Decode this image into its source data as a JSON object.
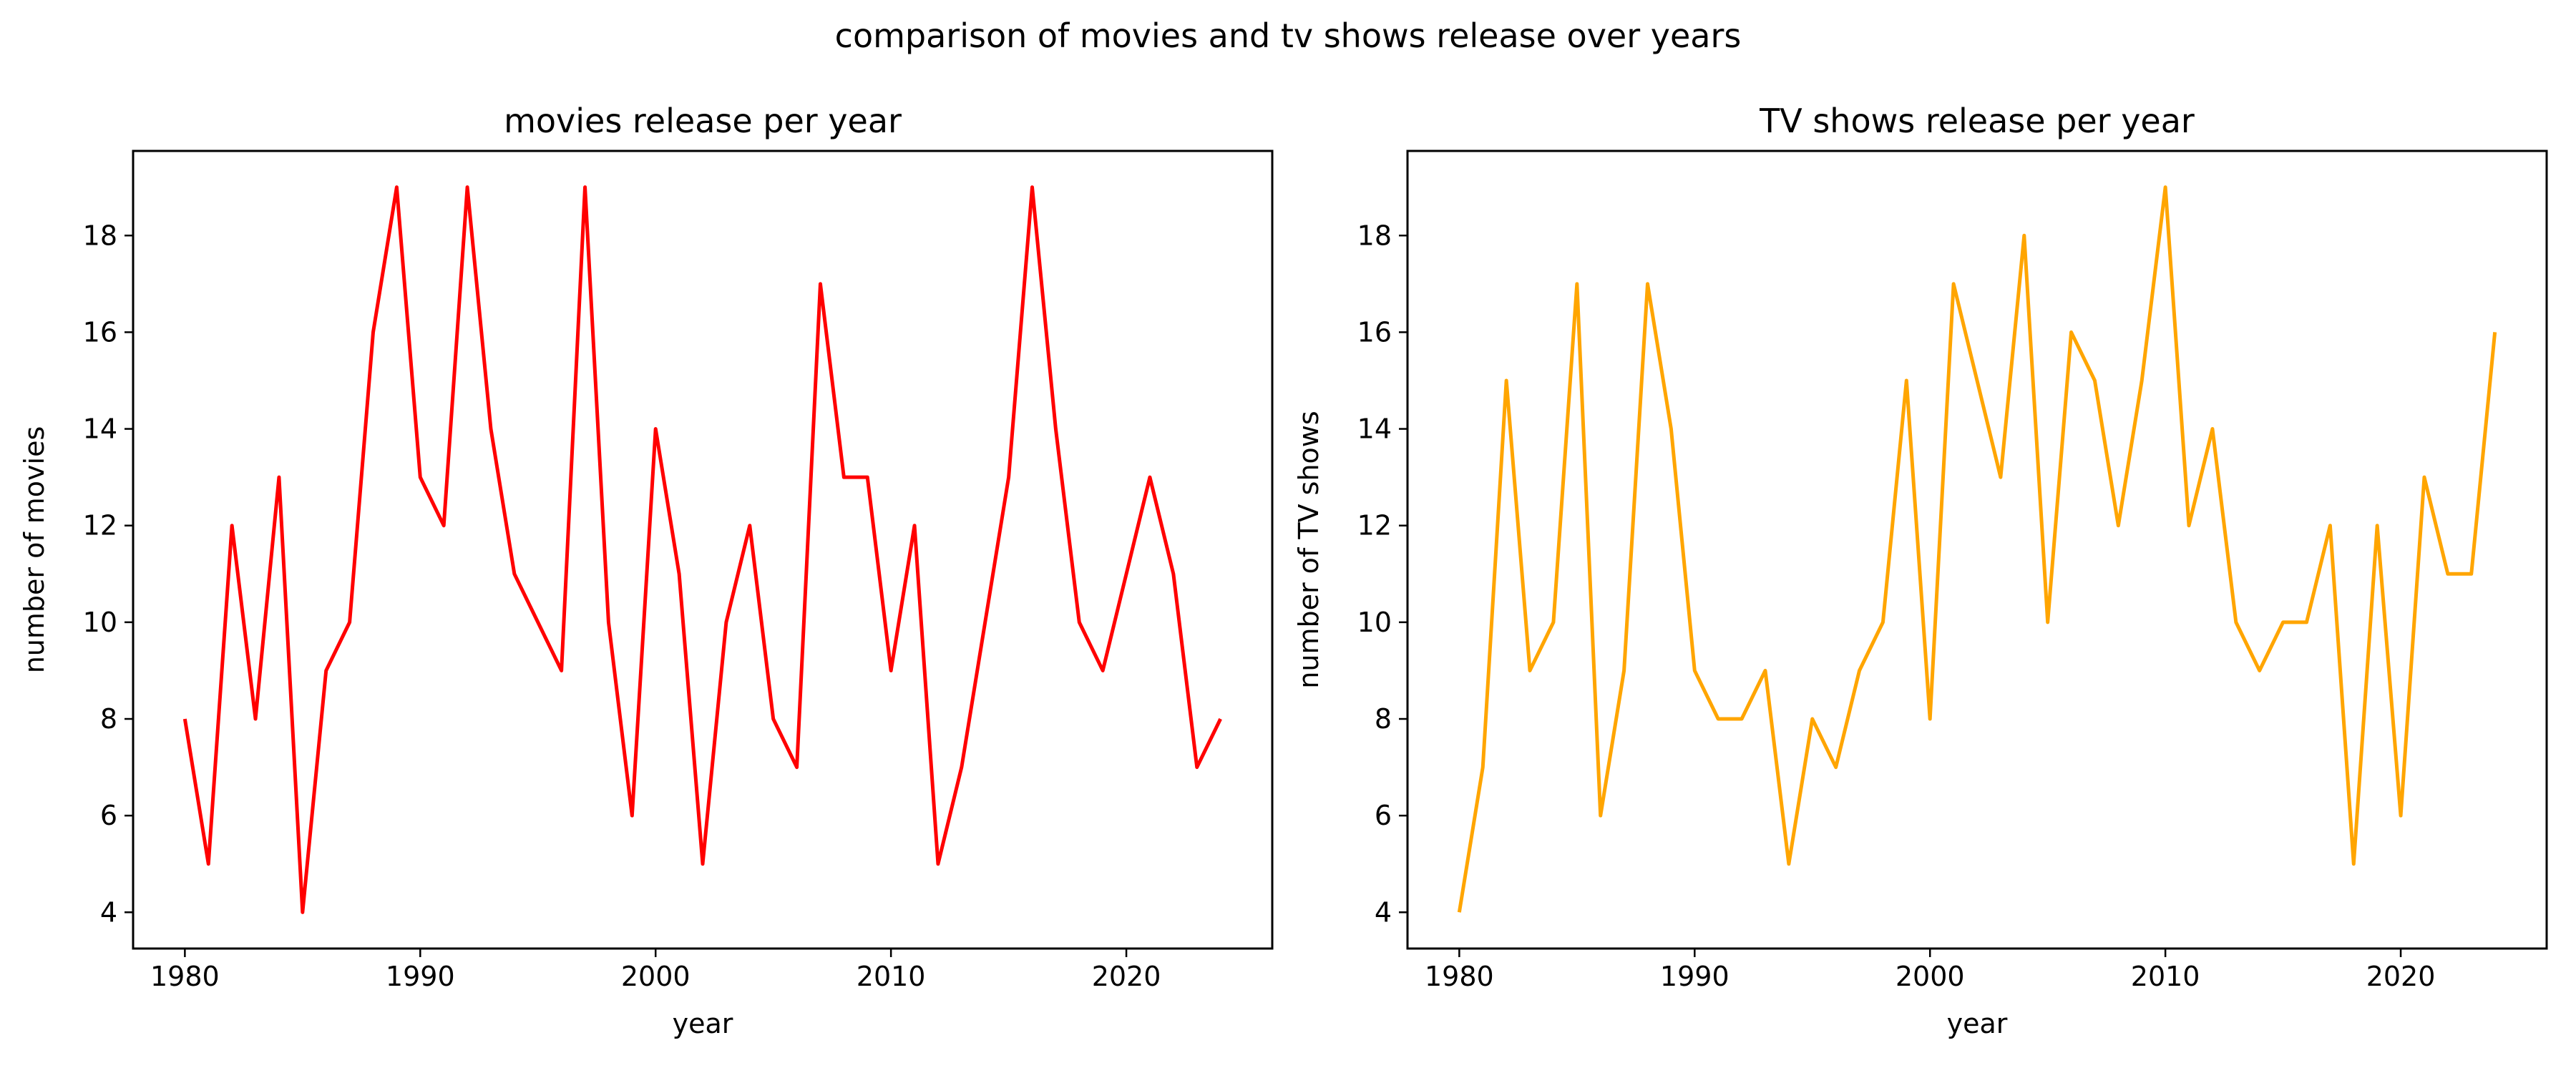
{
  "figure": {
    "title": "comparison of movies and tv shows release over years"
  },
  "chart_data": [
    {
      "type": "line",
      "title": "movies release per year",
      "xlabel": "year",
      "ylabel": "number of movies",
      "xlim": [
        1977.8,
        2026.2
      ],
      "ylim": [
        3.25,
        19.75
      ],
      "xticks": [
        1980,
        1990,
        2000,
        2010,
        2020
      ],
      "yticks": [
        4,
        6,
        8,
        10,
        12,
        14,
        16,
        18
      ],
      "grid": false,
      "series": [
        {
          "color": "#ff0000",
          "x": [
            1980,
            1981,
            1982,
            1983,
            1984,
            1985,
            1986,
            1987,
            1988,
            1989,
            1990,
            1991,
            1992,
            1993,
            1994,
            1995,
            1996,
            1997,
            1998,
            1999,
            2000,
            2001,
            2002,
            2003,
            2004,
            2005,
            2006,
            2007,
            2008,
            2009,
            2010,
            2011,
            2012,
            2013,
            2014,
            2015,
            2016,
            2017,
            2018,
            2019,
            2020,
            2021,
            2022,
            2023,
            2024
          ],
          "y": [
            8,
            5,
            12,
            8,
            13,
            4,
            9,
            10,
            16,
            19,
            13,
            12,
            19,
            14,
            11,
            10,
            9,
            19,
            10,
            6,
            14,
            11,
            5,
            10,
            12,
            8,
            7,
            17,
            13,
            13,
            9,
            12,
            5,
            7,
            10,
            13,
            19,
            14,
            10,
            9,
            11,
            13,
            11,
            7,
            8
          ]
        }
      ]
    },
    {
      "type": "line",
      "title": "TV shows release per year",
      "xlabel": "year",
      "ylabel": "number of TV shows",
      "xlim": [
        1977.8,
        2026.2
      ],
      "ylim": [
        3.25,
        19.75
      ],
      "xticks": [
        1980,
        1990,
        2000,
        2010,
        2020
      ],
      "yticks": [
        4,
        6,
        8,
        10,
        12,
        14,
        16,
        18
      ],
      "grid": false,
      "series": [
        {
          "color": "#ffa500",
          "x": [
            1980,
            1981,
            1982,
            1983,
            1984,
            1985,
            1986,
            1987,
            1988,
            1989,
            1990,
            1991,
            1992,
            1993,
            1994,
            1995,
            1996,
            1997,
            1998,
            1999,
            2000,
            2001,
            2002,
            2003,
            2004,
            2005,
            2006,
            2007,
            2008,
            2009,
            2010,
            2011,
            2012,
            2013,
            2014,
            2015,
            2016,
            2017,
            2018,
            2019,
            2020,
            2021,
            2022,
            2023,
            2024
          ],
          "y": [
            4,
            7,
            15,
            9,
            10,
            17,
            6,
            9,
            17,
            14,
            9,
            8,
            8,
            9,
            5,
            8,
            7,
            9,
            10,
            15,
            8,
            17,
            15,
            13,
            18,
            10,
            16,
            15,
            12,
            15,
            19,
            12,
            14,
            10,
            9,
            10,
            10,
            12,
            5,
            12,
            6,
            13,
            11,
            11,
            16
          ]
        }
      ]
    }
  ]
}
